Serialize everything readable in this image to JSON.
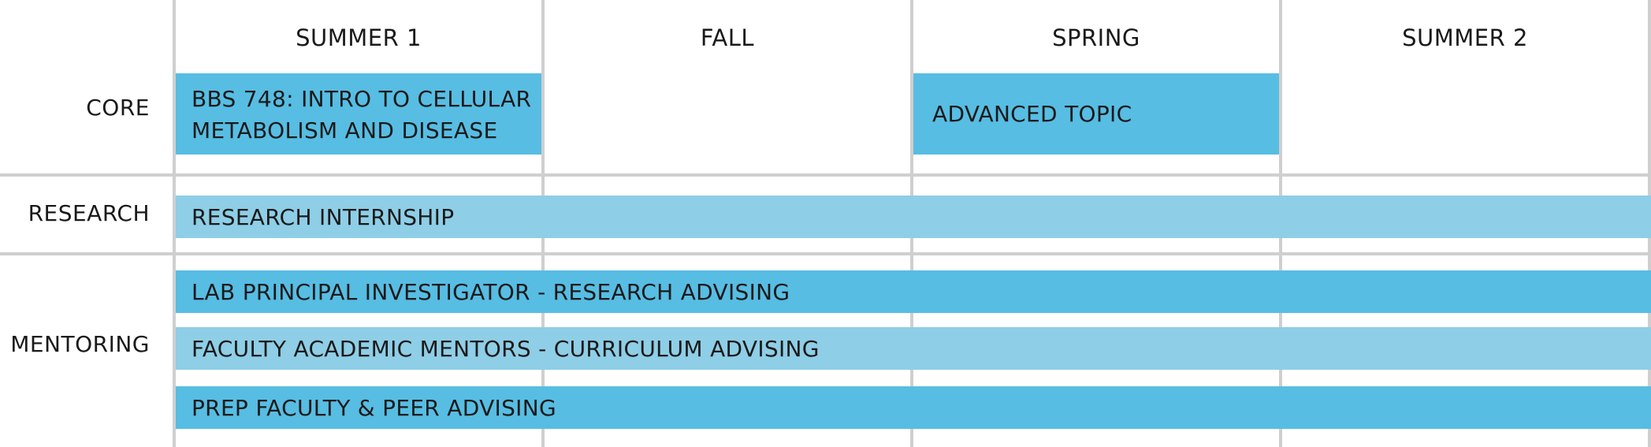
{
  "columns": [
    "SUMMER 1",
    "FALL",
    "SPRING",
    "SUMMER 2"
  ],
  "rows": {
    "core": {
      "label": "CORE",
      "items": [
        {
          "text": "BBS 748: INTRO TO CELLULAR METABOLISM AND DISEASE",
          "term": "SUMMER 1"
        },
        {
          "text": "ADVANCED TOPIC",
          "term": "SPRING"
        }
      ]
    },
    "research": {
      "label": "RESEARCH",
      "items": [
        {
          "text": "RESEARCH INTERNSHIP",
          "span": "SUMMER 1 – SUMMER 2"
        }
      ]
    },
    "mentoring": {
      "label": "MENTORING",
      "items": [
        {
          "text": "LAB PRINCIPAL INVESTIGATOR - RESEARCH ADVISING"
        },
        {
          "text": "FACULTY ACADEMIC MENTORS - CURRICULUM ADVISING"
        },
        {
          "text": "PREP FACULTY & PEER ADVISING"
        }
      ]
    }
  },
  "colors": {
    "bar_dark": "#57bde3",
    "bar_light": "#8ecee6",
    "grid": "#cfcfcf"
  }
}
